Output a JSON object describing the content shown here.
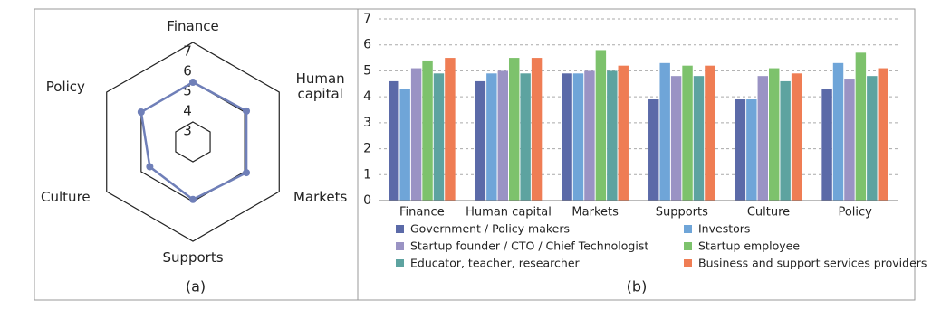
{
  "chart_data": [
    {
      "type": "radar",
      "caption": "(a)",
      "categories": [
        "Finance",
        "Human capital",
        "Markets",
        "Supports",
        "Culture",
        "Policy"
      ],
      "values": [
        5.0,
        5.1,
        5.1,
        4.9,
        4.5,
        5.0
      ],
      "color": "#6f7fb8",
      "rlim": [
        2,
        7
      ],
      "rticks": [
        3,
        4,
        5,
        6,
        7
      ],
      "grid_rings": [
        3,
        5,
        7
      ]
    },
    {
      "type": "bar",
      "caption": "(b)",
      "categories": [
        "Finance",
        "Human capital",
        "Markets",
        "Supports",
        "Culture",
        "Policy"
      ],
      "series": [
        {
          "name": "Government / Policy makers",
          "color": "#5b6aa8",
          "values": [
            4.6,
            4.6,
            4.9,
            3.9,
            3.9,
            4.3
          ]
        },
        {
          "name": "Investors",
          "color": "#6fa5d8",
          "values": [
            4.3,
            4.9,
            4.9,
            5.3,
            3.9,
            5.3
          ]
        },
        {
          "name": "Startup founder / CTO / Chief Technologist",
          "color": "#9a93c4",
          "values": [
            5.1,
            5.0,
            5.0,
            4.8,
            4.8,
            4.7
          ]
        },
        {
          "name": "Startup employee",
          "color": "#7dc26c",
          "values": [
            5.4,
            5.5,
            5.8,
            5.2,
            5.1,
            5.7
          ]
        },
        {
          "name": "Educator, teacher, researcher",
          "color": "#5da3a0",
          "values": [
            4.9,
            4.9,
            5.0,
            4.8,
            4.6,
            4.8
          ]
        },
        {
          "name": "Business and support services providers",
          "color": "#ef7d54",
          "values": [
            5.5,
            5.5,
            5.2,
            5.2,
            4.9,
            5.1
          ]
        }
      ],
      "ylim": [
        0,
        7
      ],
      "yticks": [
        0,
        1,
        2,
        3,
        4,
        5,
        6,
        7
      ],
      "grid": true
    }
  ]
}
